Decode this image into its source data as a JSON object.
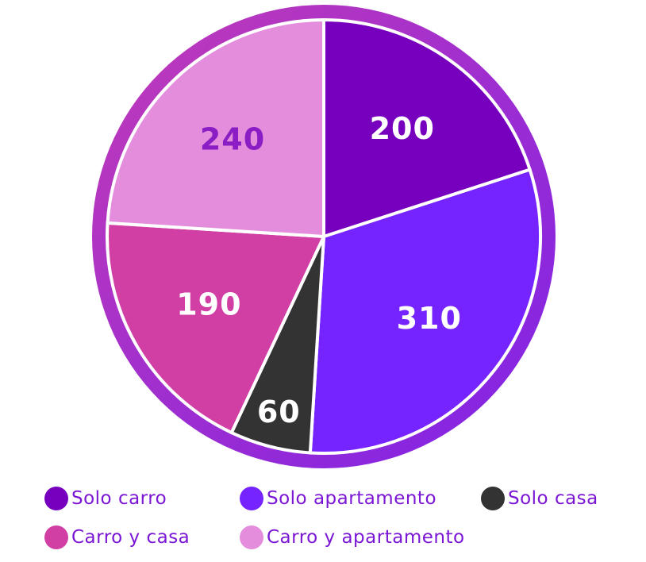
{
  "chart_data": {
    "type": "pie",
    "categories": [
      "Solo carro",
      "Solo apartamento",
      "Solo casa",
      "Carro y casa",
      "Carro y apartamento"
    ],
    "values": [
      200,
      310,
      60,
      190,
      240
    ],
    "value_labels": [
      "200",
      "310",
      "60",
      "190",
      "240"
    ],
    "colors": [
      "#7700bf",
      "#7523ff",
      "#333333",
      "#d13fa5",
      "#e38ddc"
    ],
    "label_colors": [
      "#ffffff",
      "#ffffff",
      "#ffffff",
      "#ffffff",
      "#8a1dc4"
    ],
    "rim_gradient": [
      "#c23bb6",
      "#7d22e8"
    ],
    "legend_text_color": "#7a16d4",
    "start_angle_deg": 0,
    "direction": "clockwise",
    "legend_position": "bottom"
  },
  "legend": {
    "items": [
      {
        "label": "Solo carro",
        "color": "#7700bf"
      },
      {
        "label": "Solo apartamento",
        "color": "#7523ff"
      },
      {
        "label": "Solo casa",
        "color": "#333333"
      },
      {
        "label": "Carro y casa",
        "color": "#d13fa5"
      },
      {
        "label": "Carro y apartamento",
        "color": "#e38ddc"
      }
    ]
  }
}
